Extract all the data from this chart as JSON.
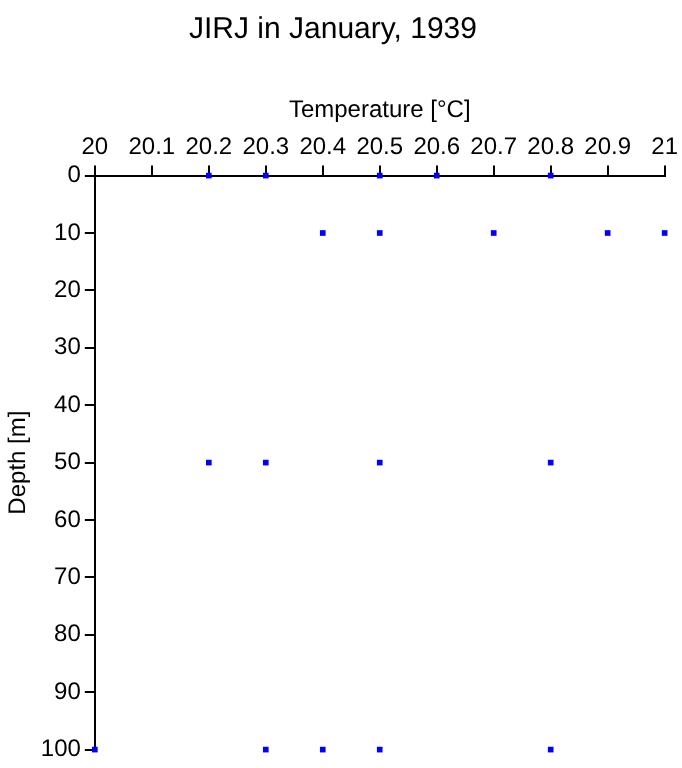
{
  "chart_data": {
    "type": "scatter",
    "title": "JIRJ in January, 1939",
    "xlabel": "Temperature [°C]",
    "ylabel": "Depth [m]",
    "series": [
      {
        "color": "#0000ff",
        "x": [
          20.2,
          20.3,
          20.5,
          20.6,
          20.8,
          20.4,
          20.5,
          20.7,
          20.9,
          21.0,
          20.2,
          20.3,
          20.5,
          20.8,
          20.0,
          20.3,
          20.4,
          20.5,
          20.8
        ],
        "values": [
          0,
          0,
          0,
          0,
          0,
          10,
          10,
          10,
          10,
          10,
          50,
          50,
          50,
          50,
          100,
          100,
          100,
          100,
          100
        ]
      }
    ],
    "xlim": [
      20,
      21
    ],
    "xticks": [
      20,
      20.1,
      20.2,
      20.3,
      20.4,
      20.5,
      20.6,
      20.7,
      20.8,
      20.9,
      21
    ],
    "ylim": [
      100,
      0
    ],
    "yticks": [
      0,
      10,
      20,
      30,
      40,
      50,
      60,
      70,
      80,
      90,
      100
    ],
    "marker": "square",
    "grid": false,
    "legend": false
  }
}
